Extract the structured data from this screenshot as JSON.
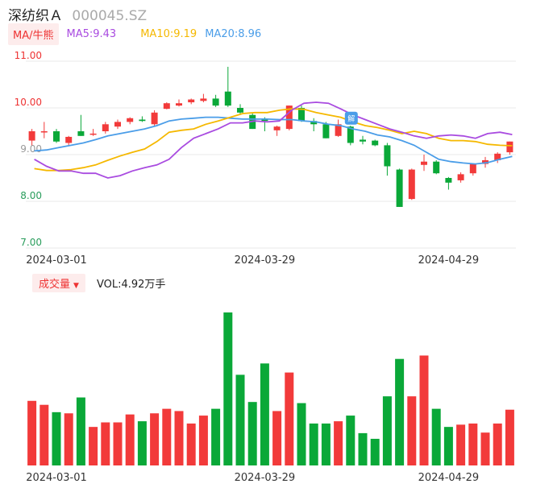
{
  "header": {
    "name": "深纺织Ａ",
    "code": "000045.SZ"
  },
  "ma_bar": {
    "toggle": "MA/牛熊",
    "ma5": "MA5:9.43",
    "ma10": "MA10:9.19",
    "ma20": "MA20:8.96",
    "colors": {
      "ma5": "#a94be0",
      "ma10": "#f5b800",
      "ma20": "#4a9de8"
    }
  },
  "vol_bar": {
    "toggle": "成交量",
    "caret": "▼",
    "label": "VOL:4.92万手"
  },
  "badge": {
    "text": "解"
  },
  "colors": {
    "up": "#f23a3a",
    "down": "#0aa838"
  },
  "chart_data": {
    "type": "candlestick",
    "ylim": [
      7.0,
      11.0
    ],
    "yticks": [
      "11.00",
      "10.00",
      "9.00",
      "8.00",
      "7.00"
    ],
    "x_tick_labels": [
      "2024-03-01",
      "2024-03-29",
      "2024-04-29"
    ],
    "candles": [
      {
        "o": 9.3,
        "h": 9.55,
        "l": 9.2,
        "c": 9.5
      },
      {
        "o": 9.48,
        "h": 9.7,
        "l": 9.35,
        "c": 9.5
      },
      {
        "o": 9.5,
        "h": 9.55,
        "l": 9.25,
        "c": 9.28
      },
      {
        "o": 9.25,
        "h": 9.4,
        "l": 9.18,
        "c": 9.38
      },
      {
        "o": 9.5,
        "h": 9.85,
        "l": 9.4,
        "c": 9.4
      },
      {
        "o": 9.45,
        "h": 9.55,
        "l": 9.4,
        "c": 9.45
      },
      {
        "o": 9.5,
        "h": 9.7,
        "l": 9.45,
        "c": 9.65
      },
      {
        "o": 9.6,
        "h": 9.75,
        "l": 9.55,
        "c": 9.7
      },
      {
        "o": 9.7,
        "h": 9.8,
        "l": 9.65,
        "c": 9.78
      },
      {
        "o": 9.75,
        "h": 9.82,
        "l": 9.7,
        "c": 9.72
      },
      {
        "o": 9.65,
        "h": 9.95,
        "l": 9.6,
        "c": 9.9
      },
      {
        "o": 9.98,
        "h": 10.12,
        "l": 9.97,
        "c": 10.1
      },
      {
        "o": 10.05,
        "h": 10.18,
        "l": 10.03,
        "c": 10.1
      },
      {
        "o": 10.12,
        "h": 10.2,
        "l": 10.08,
        "c": 10.18
      },
      {
        "o": 10.15,
        "h": 10.3,
        "l": 10.12,
        "c": 10.2
      },
      {
        "o": 10.2,
        "h": 10.28,
        "l": 10.02,
        "c": 10.05
      },
      {
        "o": 10.35,
        "h": 10.88,
        "l": 10.02,
        "c": 10.05
      },
      {
        "o": 10.0,
        "h": 10.08,
        "l": 9.85,
        "c": 9.9
      },
      {
        "o": 9.85,
        "h": 9.88,
        "l": 9.55,
        "c": 9.55
      },
      {
        "o": 9.75,
        "h": 9.8,
        "l": 9.5,
        "c": 9.72
      },
      {
        "o": 9.52,
        "h": 9.62,
        "l": 9.4,
        "c": 9.6
      },
      {
        "o": 9.55,
        "h": 10.05,
        "l": 9.52,
        "c": 10.05
      },
      {
        "o": 10.0,
        "h": 10.05,
        "l": 9.7,
        "c": 9.72
      },
      {
        "o": 9.72,
        "h": 9.78,
        "l": 9.5,
        "c": 9.65
      },
      {
        "o": 9.65,
        "h": 9.7,
        "l": 9.35,
        "c": 9.35
      },
      {
        "o": 9.4,
        "h": 9.75,
        "l": 9.38,
        "c": 9.65
      },
      {
        "o": 9.6,
        "h": 9.62,
        "l": 9.2,
        "c": 9.25
      },
      {
        "o": 9.32,
        "h": 9.4,
        "l": 9.22,
        "c": 9.28
      },
      {
        "o": 9.3,
        "h": 9.32,
        "l": 9.18,
        "c": 9.2
      },
      {
        "o": 9.2,
        "h": 9.25,
        "l": 8.55,
        "c": 8.75
      },
      {
        "o": 8.68,
        "h": 8.7,
        "l": 7.88,
        "c": 7.88
      },
      {
        "o": 8.05,
        "h": 8.7,
        "l": 8.03,
        "c": 8.68
      },
      {
        "o": 8.78,
        "h": 9.0,
        "l": 8.65,
        "c": 8.85
      },
      {
        "o": 8.85,
        "h": 8.88,
        "l": 8.58,
        "c": 8.6
      },
      {
        "o": 8.5,
        "h": 8.52,
        "l": 8.25,
        "c": 8.4
      },
      {
        "o": 8.45,
        "h": 8.62,
        "l": 8.4,
        "c": 8.58
      },
      {
        "o": 8.6,
        "h": 8.8,
        "l": 8.55,
        "c": 8.8
      },
      {
        "o": 8.8,
        "h": 8.95,
        "l": 8.72,
        "c": 8.88
      },
      {
        "o": 8.88,
        "h": 9.05,
        "l": 8.82,
        "c": 9.02
      },
      {
        "o": 9.05,
        "h": 9.28,
        "l": 9.0,
        "c": 9.28
      }
    ],
    "ma5": [
      8.9,
      8.75,
      8.65,
      8.65,
      8.6,
      8.6,
      8.5,
      8.55,
      8.65,
      8.72,
      8.78,
      8.9,
      9.15,
      9.35,
      9.45,
      9.55,
      9.68,
      9.68,
      9.72,
      9.7,
      9.72,
      9.95,
      10.1,
      10.12,
      10.1,
      9.98,
      9.85,
      9.75,
      9.65,
      9.55,
      9.48,
      9.4,
      9.35,
      9.4,
      9.42,
      9.4,
      9.35,
      9.45,
      9.48,
      9.43
    ],
    "ma10": [
      8.7,
      8.66,
      8.66,
      8.68,
      8.72,
      8.78,
      8.88,
      8.97,
      9.05,
      9.12,
      9.28,
      9.48,
      9.52,
      9.55,
      9.65,
      9.72,
      9.8,
      9.88,
      9.9,
      9.9,
      9.95,
      9.98,
      9.97,
      9.9,
      9.85,
      9.8,
      9.7,
      9.62,
      9.58,
      9.52,
      9.45,
      9.5,
      9.45,
      9.35,
      9.3,
      9.3,
      9.28,
      9.22,
      9.2,
      9.19
    ],
    "ma20": [
      9.08,
      9.1,
      9.15,
      9.2,
      9.25,
      9.32,
      9.4,
      9.45,
      9.5,
      9.55,
      9.62,
      9.72,
      9.76,
      9.78,
      9.8,
      9.8,
      9.78,
      9.76,
      9.76,
      9.76,
      9.75,
      9.75,
      9.72,
      9.7,
      9.65,
      9.62,
      9.55,
      9.5,
      9.42,
      9.38,
      9.3,
      9.2,
      9.05,
      8.9,
      8.85,
      8.82,
      8.8,
      8.83,
      8.9,
      8.96
    ],
    "volume_unit": "万手",
    "volume": [
      5.7,
      5.35,
      4.7,
      4.6,
      6.0,
      3.4,
      3.8,
      3.8,
      4.5,
      3.9,
      4.6,
      5.0,
      4.8,
      3.7,
      4.4,
      5.0,
      13.5,
      8.0,
      5.6,
      9.0,
      4.8,
      8.2,
      5.5,
      3.7,
      3.7,
      3.9,
      4.4,
      2.85,
      2.35,
      6.1,
      9.4,
      6.1,
      9.7,
      5.0,
      3.4,
      3.6,
      3.7,
      2.9,
      3.7,
      4.92
    ]
  }
}
